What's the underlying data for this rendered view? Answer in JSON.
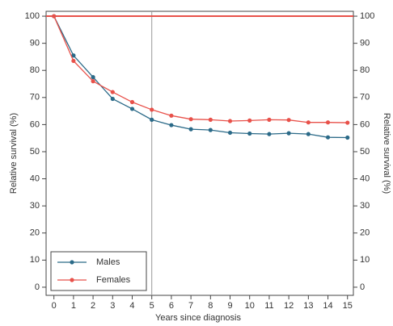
{
  "chart_data": {
    "type": "line",
    "xlabel": "Years since diagnosis",
    "ylabel": "Relative survival (%)",
    "y2label": "Relative survival (%)",
    "x": [
      0,
      1,
      2,
      3,
      4,
      5,
      6,
      7,
      8,
      9,
      10,
      11,
      12,
      13,
      14,
      15
    ],
    "series": [
      {
        "name": "Males",
        "color": "#2b6a88",
        "values": [
          100,
          85.5,
          77.5,
          69.5,
          65.8,
          61.8,
          59.8,
          58.3,
          58,
          57,
          56.7,
          56.5,
          56.8,
          56.5,
          55.3,
          55.2
        ]
      },
      {
        "name": "Females",
        "color": "#e8514a",
        "values": [
          100,
          83.5,
          76,
          72,
          68.3,
          65.5,
          63.3,
          62,
          61.8,
          61.3,
          61.5,
          61.8,
          61.7,
          60.8,
          60.8,
          60.7
        ]
      }
    ],
    "xlim": [
      -0.4,
      15.3
    ],
    "xticks": [
      0,
      1,
      2,
      3,
      4,
      5,
      6,
      7,
      8,
      9,
      10,
      11,
      12,
      13,
      14,
      15
    ],
    "ylim": [
      -3,
      101.8
    ],
    "yticks": [
      0,
      10,
      20,
      30,
      40,
      50,
      60,
      70,
      80,
      90,
      100
    ],
    "y2lim": [
      -3,
      101.8
    ],
    "y2ticks": [
      0,
      10,
      20,
      30,
      40,
      50,
      60,
      70,
      80,
      90,
      100
    ],
    "reference_line": {
      "value": 100,
      "color": "#e8514a"
    },
    "vertical_line": {
      "value": 5,
      "color": "#999999"
    },
    "legend": "lower-left"
  }
}
